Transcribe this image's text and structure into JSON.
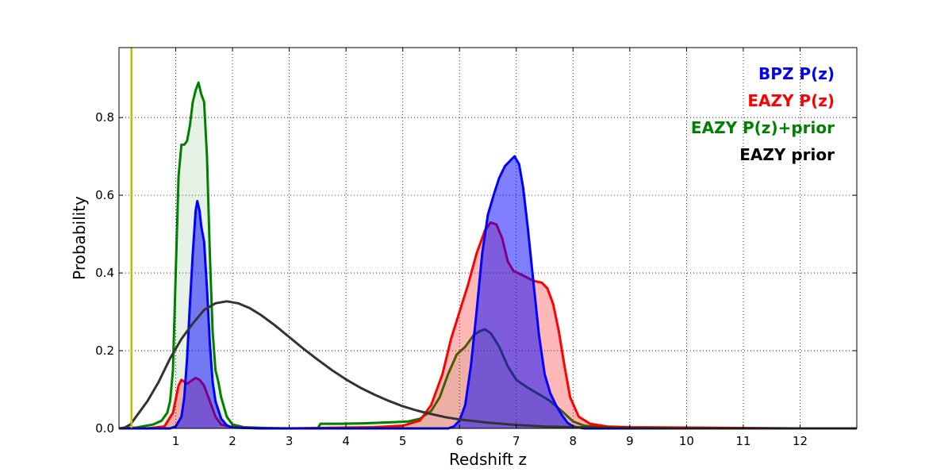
{
  "chart_data": {
    "type": "area",
    "title": "",
    "xlabel": "Redshift z",
    "ylabel": "Probability",
    "xlim": [
      0,
      13
    ],
    "ylim": [
      0,
      0.98
    ],
    "grid": true,
    "legend_position": "top-right",
    "x_ticks": [
      1,
      2,
      3,
      4,
      5,
      6,
      7,
      8,
      9,
      10,
      11,
      12
    ],
    "x_tick_labels": [
      "1",
      "2",
      "3",
      "4",
      "5",
      "6",
      "7",
      "8",
      "9",
      "10",
      "11",
      "12"
    ],
    "y_ticks": [
      0.0,
      0.2,
      0.4,
      0.6,
      0.8
    ],
    "y_tick_labels": [
      "0.0",
      "0.2",
      "0.4",
      "0.6",
      "0.8"
    ],
    "vertical_line": {
      "x": 0.22,
      "color": "#bfbf00"
    },
    "series": [
      {
        "name": "EAZY P(z)+prior",
        "color": "#008000",
        "fill": "#008000",
        "fill_opacity": 0.1,
        "points": [
          [
            0.0,
            0.0
          ],
          [
            0.3,
            0.002
          ],
          [
            0.6,
            0.01
          ],
          [
            0.75,
            0.02
          ],
          [
            0.85,
            0.04
          ],
          [
            0.9,
            0.07
          ],
          [
            0.95,
            0.15
          ],
          [
            1.0,
            0.4
          ],
          [
            1.05,
            0.65
          ],
          [
            1.1,
            0.73
          ],
          [
            1.15,
            0.73
          ],
          [
            1.2,
            0.74
          ],
          [
            1.25,
            0.78
          ],
          [
            1.3,
            0.84
          ],
          [
            1.35,
            0.87
          ],
          [
            1.4,
            0.89
          ],
          [
            1.45,
            0.86
          ],
          [
            1.5,
            0.84
          ],
          [
            1.55,
            0.7
          ],
          [
            1.6,
            0.45
          ],
          [
            1.65,
            0.25
          ],
          [
            1.7,
            0.15
          ],
          [
            1.75,
            0.12
          ],
          [
            1.8,
            0.08
          ],
          [
            1.9,
            0.03
          ],
          [
            2.0,
            0.01
          ],
          [
            2.2,
            0.003
          ],
          [
            2.6,
            0.001
          ],
          [
            3.0,
            0.0
          ],
          [
            3.5,
            0.0
          ],
          [
            3.55,
            0.012
          ],
          [
            3.9,
            0.012
          ],
          [
            4.3,
            0.013
          ],
          [
            4.8,
            0.016
          ],
          [
            5.1,
            0.018
          ],
          [
            5.3,
            0.025
          ],
          [
            5.5,
            0.045
          ],
          [
            5.65,
            0.08
          ],
          [
            5.8,
            0.14
          ],
          [
            5.95,
            0.19
          ],
          [
            6.1,
            0.21
          ],
          [
            6.25,
            0.24
          ],
          [
            6.35,
            0.25
          ],
          [
            6.45,
            0.255
          ],
          [
            6.55,
            0.245
          ],
          [
            6.7,
            0.21
          ],
          [
            6.85,
            0.16
          ],
          [
            7.0,
            0.125
          ],
          [
            7.2,
            0.105
          ],
          [
            7.4,
            0.088
          ],
          [
            7.6,
            0.07
          ],
          [
            7.8,
            0.045
          ],
          [
            8.0,
            0.018
          ],
          [
            8.2,
            0.007
          ],
          [
            8.5,
            0.003
          ],
          [
            9.0,
            0.001
          ],
          [
            10.0,
            0.0
          ],
          [
            13.0,
            0.0
          ]
        ]
      },
      {
        "name": "EAZY P(z)",
        "color": "#ff0000",
        "fill": "#ff0000",
        "fill_opacity": 0.28,
        "points": [
          [
            0.0,
            0.0
          ],
          [
            0.5,
            0.0
          ],
          [
            0.8,
            0.005
          ],
          [
            0.95,
            0.04
          ],
          [
            1.05,
            0.11
          ],
          [
            1.1,
            0.125
          ],
          [
            1.2,
            0.115
          ],
          [
            1.3,
            0.125
          ],
          [
            1.35,
            0.13
          ],
          [
            1.42,
            0.125
          ],
          [
            1.5,
            0.11
          ],
          [
            1.6,
            0.07
          ],
          [
            1.7,
            0.03
          ],
          [
            1.8,
            0.01
          ],
          [
            2.0,
            0.003
          ],
          [
            2.5,
            0.0
          ],
          [
            3.0,
            0.0
          ],
          [
            4.0,
            0.002
          ],
          [
            4.5,
            0.003
          ],
          [
            5.0,
            0.007
          ],
          [
            5.3,
            0.02
          ],
          [
            5.5,
            0.06
          ],
          [
            5.7,
            0.14
          ],
          [
            5.85,
            0.23
          ],
          [
            6.0,
            0.3
          ],
          [
            6.15,
            0.37
          ],
          [
            6.3,
            0.45
          ],
          [
            6.45,
            0.51
          ],
          [
            6.55,
            0.53
          ],
          [
            6.65,
            0.525
          ],
          [
            6.75,
            0.49
          ],
          [
            6.85,
            0.43
          ],
          [
            6.95,
            0.405
          ],
          [
            7.1,
            0.395
          ],
          [
            7.3,
            0.38
          ],
          [
            7.45,
            0.375
          ],
          [
            7.55,
            0.36
          ],
          [
            7.65,
            0.32
          ],
          [
            7.75,
            0.25
          ],
          [
            7.85,
            0.16
          ],
          [
            7.95,
            0.08
          ],
          [
            8.1,
            0.03
          ],
          [
            8.3,
            0.012
          ],
          [
            8.6,
            0.005
          ],
          [
            9.0,
            0.003
          ],
          [
            10.0,
            0.002
          ],
          [
            11.0,
            0.001
          ],
          [
            12.0,
            0.0
          ],
          [
            13.0,
            0.0
          ]
        ]
      },
      {
        "name": "BPZ P(z)",
        "color": "#0000ff",
        "fill": "#0000ff",
        "fill_opacity": 0.5,
        "points": [
          [
            0.0,
            0.0
          ],
          [
            0.9,
            0.0
          ],
          [
            1.0,
            0.005
          ],
          [
            1.1,
            0.03
          ],
          [
            1.15,
            0.08
          ],
          [
            1.2,
            0.18
          ],
          [
            1.25,
            0.32
          ],
          [
            1.3,
            0.45
          ],
          [
            1.35,
            0.56
          ],
          [
            1.38,
            0.585
          ],
          [
            1.42,
            0.56
          ],
          [
            1.45,
            0.52
          ],
          [
            1.5,
            0.48
          ],
          [
            1.55,
            0.36
          ],
          [
            1.6,
            0.22
          ],
          [
            1.65,
            0.12
          ],
          [
            1.7,
            0.07
          ],
          [
            1.8,
            0.025
          ],
          [
            1.9,
            0.008
          ],
          [
            2.0,
            0.002
          ],
          [
            2.5,
            0.0
          ],
          [
            5.8,
            0.0
          ],
          [
            5.9,
            0.005
          ],
          [
            6.0,
            0.02
          ],
          [
            6.1,
            0.06
          ],
          [
            6.2,
            0.16
          ],
          [
            6.3,
            0.3
          ],
          [
            6.4,
            0.45
          ],
          [
            6.5,
            0.55
          ],
          [
            6.6,
            0.6
          ],
          [
            6.7,
            0.645
          ],
          [
            6.8,
            0.675
          ],
          [
            6.9,
            0.69
          ],
          [
            6.97,
            0.7
          ],
          [
            7.05,
            0.68
          ],
          [
            7.12,
            0.62
          ],
          [
            7.2,
            0.52
          ],
          [
            7.3,
            0.38
          ],
          [
            7.4,
            0.24
          ],
          [
            7.5,
            0.14
          ],
          [
            7.6,
            0.09
          ],
          [
            7.7,
            0.06
          ],
          [
            7.8,
            0.035
          ],
          [
            7.9,
            0.015
          ],
          [
            8.0,
            0.005
          ],
          [
            8.2,
            0.0
          ],
          [
            13.0,
            0.0
          ]
        ]
      },
      {
        "name": "EAZY prior",
        "color": "#333333",
        "fill": "none",
        "fill_opacity": 0,
        "points": [
          [
            0.0,
            0.0
          ],
          [
            0.1,
            0.002
          ],
          [
            0.2,
            0.01
          ],
          [
            0.3,
            0.03
          ],
          [
            0.5,
            0.07
          ],
          [
            0.7,
            0.12
          ],
          [
            0.9,
            0.18
          ],
          [
            1.1,
            0.23
          ],
          [
            1.3,
            0.27
          ],
          [
            1.5,
            0.305
          ],
          [
            1.7,
            0.322
          ],
          [
            1.9,
            0.327
          ],
          [
            2.1,
            0.322
          ],
          [
            2.3,
            0.31
          ],
          [
            2.5,
            0.292
          ],
          [
            2.75,
            0.265
          ],
          [
            3.0,
            0.235
          ],
          [
            3.25,
            0.205
          ],
          [
            3.5,
            0.177
          ],
          [
            3.75,
            0.15
          ],
          [
            4.0,
            0.126
          ],
          [
            4.25,
            0.105
          ],
          [
            4.5,
            0.087
          ],
          [
            4.75,
            0.071
          ],
          [
            5.0,
            0.057
          ],
          [
            5.25,
            0.046
          ],
          [
            5.5,
            0.037
          ],
          [
            5.75,
            0.029
          ],
          [
            6.0,
            0.023
          ],
          [
            6.5,
            0.015
          ],
          [
            7.0,
            0.009
          ],
          [
            7.5,
            0.005
          ],
          [
            8.0,
            0.003
          ],
          [
            9.0,
            0.001
          ],
          [
            10.0,
            0.0
          ],
          [
            13.0,
            0.0
          ]
        ]
      }
    ],
    "legend": [
      {
        "label": "BPZ P(z)",
        "color": "#0000ff"
      },
      {
        "label": "EAZY P(z)",
        "color": "#ff0000"
      },
      {
        "label": "EAZY P(z)+prior",
        "color": "#008000"
      },
      {
        "label": "EAZY prior",
        "color": "#000000"
      }
    ]
  }
}
